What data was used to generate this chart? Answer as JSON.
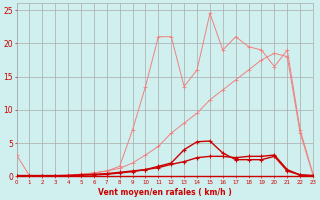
{
  "x": [
    0,
    1,
    2,
    3,
    4,
    5,
    6,
    7,
    8,
    9,
    10,
    11,
    12,
    13,
    14,
    15,
    16,
    17,
    18,
    19,
    20,
    21,
    22,
    23
  ],
  "line_pink1": [
    3.2,
    0.1,
    0.1,
    0.1,
    0.2,
    0.3,
    0.5,
    0.8,
    1.2,
    2.0,
    3.2,
    4.5,
    6.5,
    8.0,
    9.5,
    11.5,
    13.0,
    14.5,
    16.0,
    17.5,
    18.5,
    18.0,
    6.5,
    0.2
  ],
  "line_pink2": [
    0.1,
    0.1,
    0.1,
    0.1,
    0.2,
    0.3,
    0.5,
    0.8,
    1.5,
    7.0,
    13.5,
    21.0,
    21.0,
    13.5,
    16.0,
    24.5,
    19.0,
    21.0,
    19.5,
    19.0,
    16.5,
    19.0,
    7.0,
    0.3
  ],
  "line_red1": [
    0.1,
    0.1,
    0.1,
    0.1,
    0.1,
    0.2,
    0.2,
    0.3,
    0.5,
    0.7,
    1.0,
    1.5,
    2.0,
    4.0,
    5.2,
    5.3,
    3.5,
    2.5,
    2.5,
    2.5,
    3.0,
    0.8,
    0.2,
    0.1
  ],
  "line_red2": [
    0.1,
    0.1,
    0.1,
    0.1,
    0.1,
    0.2,
    0.3,
    0.4,
    0.6,
    0.8,
    1.0,
    1.3,
    1.8,
    2.2,
    2.8,
    3.0,
    3.0,
    2.8,
    3.0,
    3.0,
    3.2,
    1.0,
    0.2,
    0.1
  ],
  "color_pink": "#f08080",
  "color_red": "#cc0000",
  "bg_color": "#cff0ee",
  "grid_color": "#aaaaaa",
  "xlabel": "Vent moyen/en rafales ( km/h )",
  "ylabel_ticks": [
    0,
    5,
    10,
    15,
    20,
    25
  ],
  "xlim": [
    0,
    23
  ],
  "ylim": [
    0,
    26
  ],
  "tick_color": "#cc0000",
  "axis_label_color": "#cc0000"
}
